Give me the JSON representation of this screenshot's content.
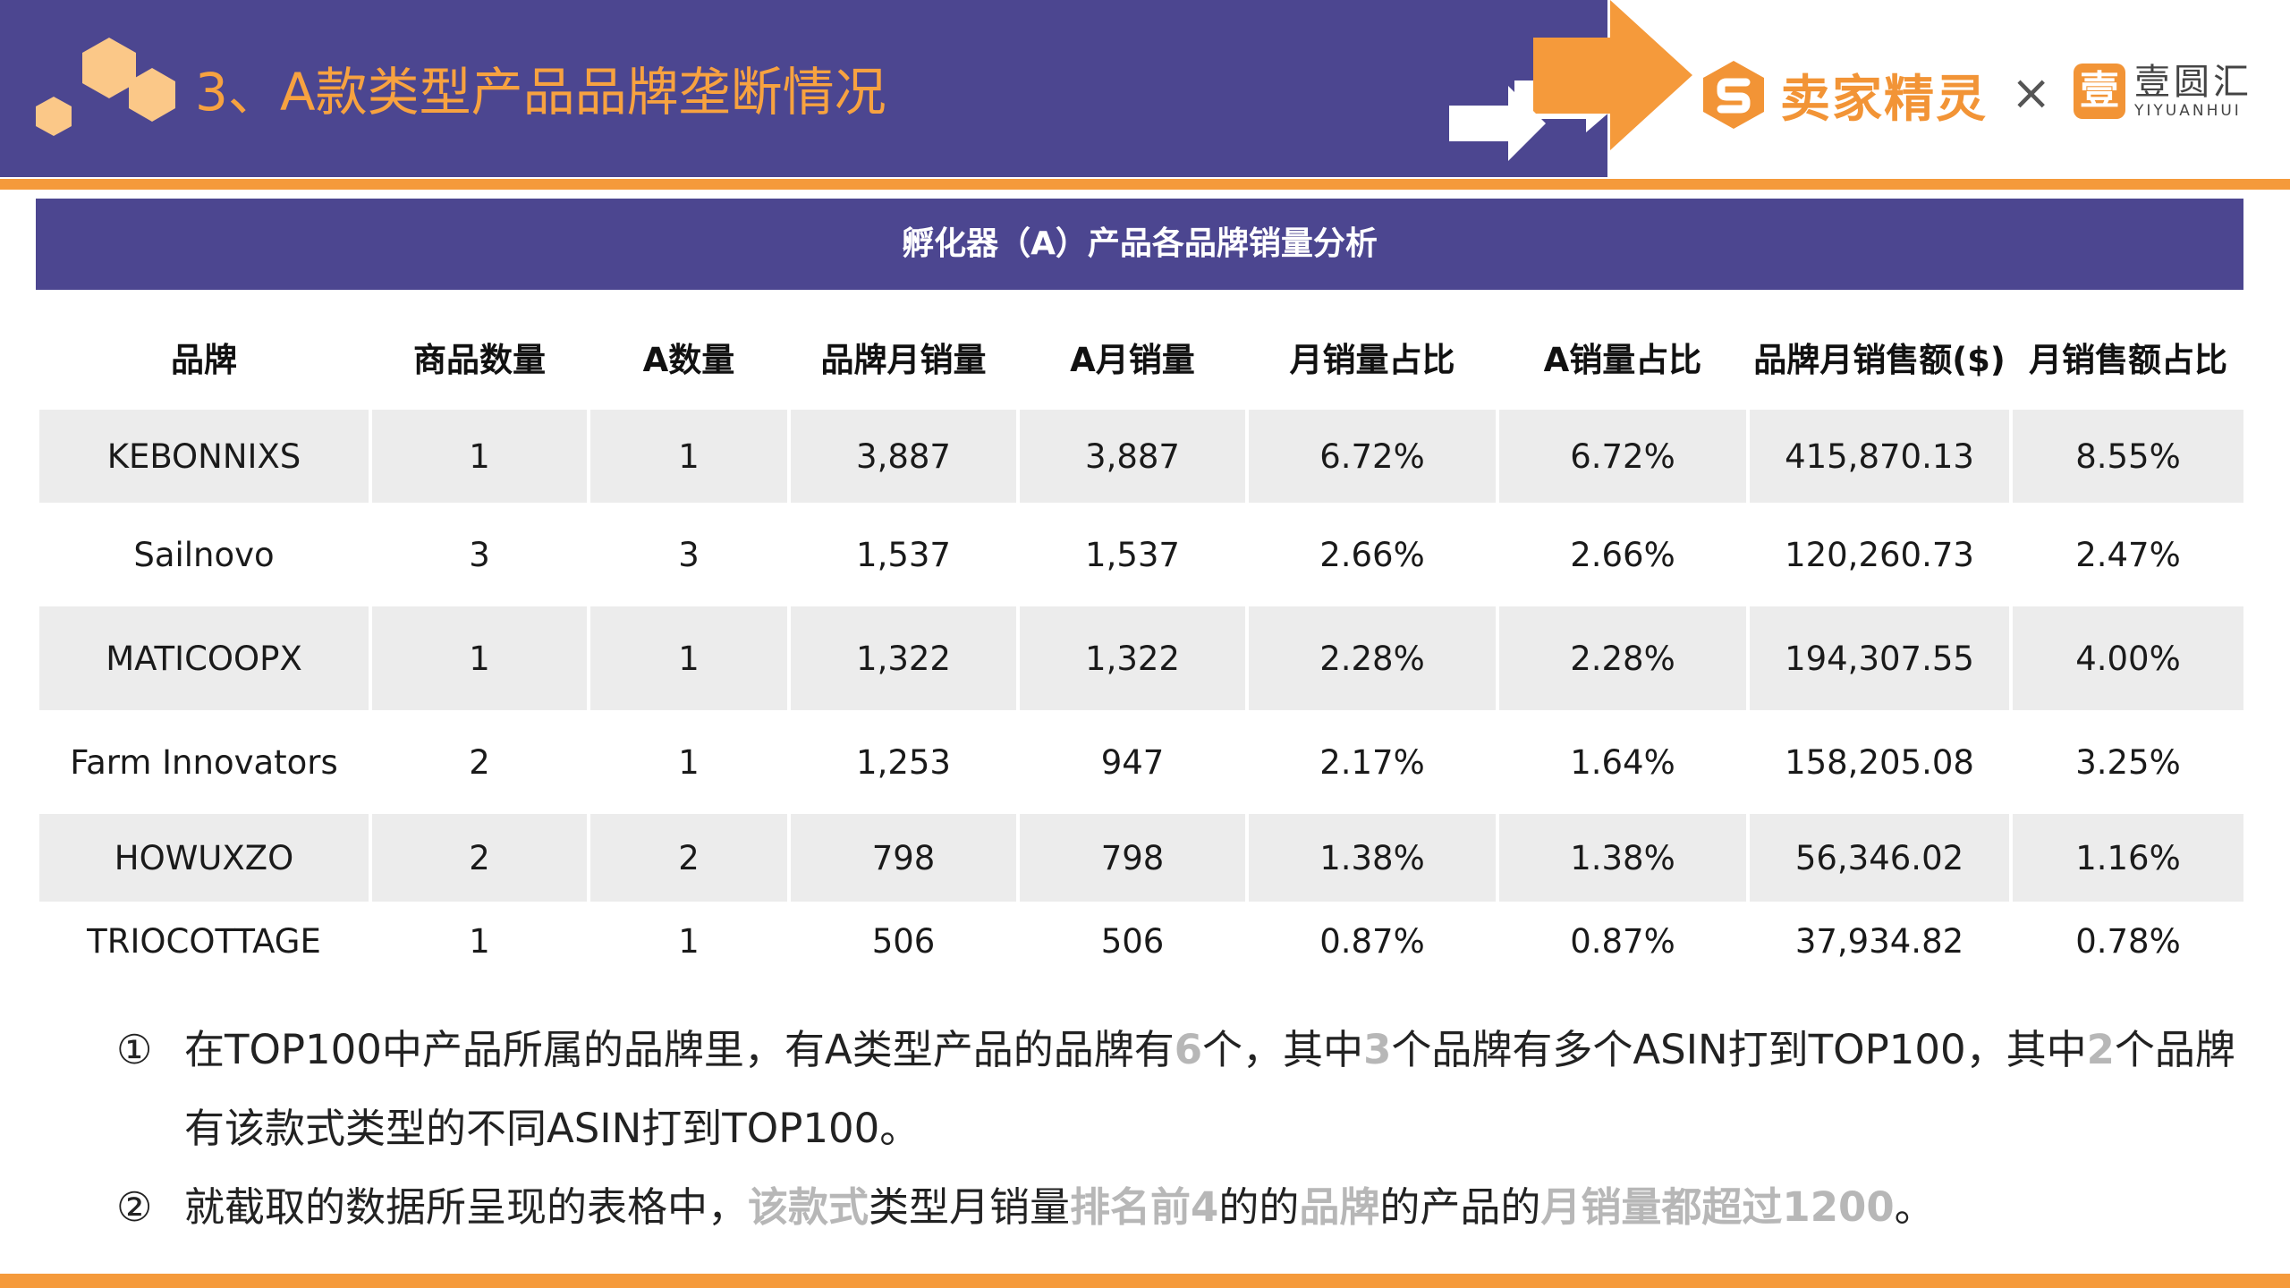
{
  "header": {
    "title": "3、A款类型产品品牌垄断情况",
    "band_color": "#4c4690",
    "accent_color": "#f59a3b"
  },
  "logos": {
    "seller_icon": "seller-sprite-s-icon",
    "seller_name": "卖家精灵",
    "cross": "×",
    "yuan_icon_char": "壹",
    "yuan_name": "壹圆汇",
    "yuan_en": "YIYUANHUI"
  },
  "table": {
    "title": "孵化器（A）产品各品牌销量分析",
    "headers": [
      "品牌",
      "商品数量",
      "A数量",
      "品牌月销量",
      "A月销量",
      "月销量占比",
      "A销量占比",
      "品牌月销售额($)",
      "月销售额占比"
    ],
    "rows": [
      [
        "KEBONNIXS",
        "1",
        "1",
        "3,887",
        "3,887",
        "6.72%",
        "6.72%",
        "415,870.13",
        "8.55%"
      ],
      [
        "Sailnovo",
        "3",
        "3",
        "1,537",
        "1,537",
        "2.66%",
        "2.66%",
        "120,260.73",
        "2.47%"
      ],
      [
        "MATICOOPX",
        "1",
        "1",
        "1,322",
        "1,322",
        "2.28%",
        "2.28%",
        "194,307.55",
        "4.00%"
      ],
      [
        "Farm Innovators",
        "2",
        "1",
        "1,253",
        "947",
        "2.17%",
        "1.64%",
        "158,205.08",
        "3.25%"
      ],
      [
        "HOWUXZO",
        "2",
        "2",
        "798",
        "798",
        "1.38%",
        "1.38%",
        "56,346.02",
        "1.16%"
      ],
      [
        "TRIOCOTTAGE",
        "1",
        "1",
        "506",
        "506",
        "0.87%",
        "0.87%",
        "37,934.82",
        "0.78%"
      ]
    ]
  },
  "notes": [
    {
      "num": "①",
      "segments": [
        {
          "text": "在TOP100中产品所属的品牌里，有A类型产品的品牌有",
          "hl": false
        },
        {
          "text": "6",
          "hl": true
        },
        {
          "text": "个，其中",
          "hl": false
        },
        {
          "text": "3",
          "hl": true
        },
        {
          "text": "个品牌有多个ASIN打到TOP100，其中",
          "hl": false
        },
        {
          "text": "2",
          "hl": true
        },
        {
          "text": "个品牌有该款式类型的不同ASIN打到TOP100。",
          "hl": false
        }
      ]
    },
    {
      "num": "②",
      "segments": [
        {
          "text": "就截取的数据所呈现的表格中，",
          "hl": false
        },
        {
          "text": "该款式",
          "hl": true
        },
        {
          "text": "类型月销量",
          "hl": false
        },
        {
          "text": "排名前4",
          "hl": true
        },
        {
          "text": "的的",
          "hl": false
        },
        {
          "text": "品牌",
          "hl": true
        },
        {
          "text": "的产品的",
          "hl": false
        },
        {
          "text": "月销量都超过1200",
          "hl": true
        },
        {
          "text": "。",
          "hl": false
        }
      ]
    }
  ]
}
